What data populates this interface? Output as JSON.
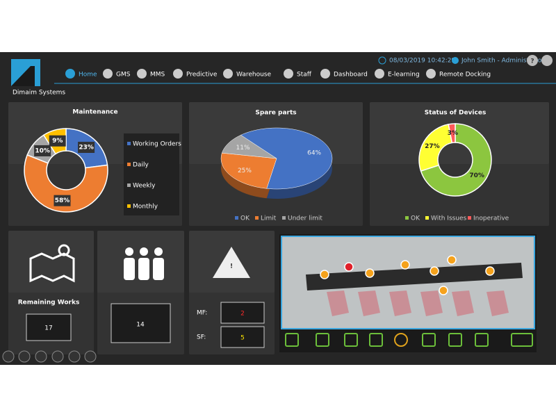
{
  "header": {
    "brand": "Dimaim Systems",
    "datetime": "08/03/2019 10:42:29",
    "user": "John Smith - Administrator"
  },
  "nav": [
    "Home",
    "GMS",
    "MMS",
    "Predictive",
    "Warehouse",
    "Staff",
    "Dashboard",
    "E-learning",
    "Remote Docking"
  ],
  "maintenance": {
    "type": "donut",
    "title": "Maintenance",
    "categories": [
      "Working Orders",
      "Daily",
      "Weekly",
      "Monthly"
    ],
    "values": [
      23,
      58,
      10,
      9
    ],
    "value_labels": [
      "23%",
      "58%",
      "10%",
      "9%"
    ],
    "colors": [
      "#4472c4",
      "#ed7d31",
      "#a5a5a5",
      "#ffc000"
    ]
  },
  "spare_parts": {
    "type": "pie3d",
    "title": "Spare parts",
    "categories": [
      "OK",
      "Limit",
      "Under limit"
    ],
    "values": [
      64,
      25,
      11
    ],
    "value_labels": [
      "64%",
      "25%",
      "11%"
    ],
    "colors": [
      "#4472c4",
      "#ed7d31",
      "#a5a5a5"
    ]
  },
  "devices": {
    "type": "donut",
    "title": "Status of Devices",
    "categories": [
      "OK",
      "With Issues",
      "Inoperative"
    ],
    "values": [
      70,
      27,
      3
    ],
    "value_labels": [
      "70%",
      "27%",
      "3%"
    ],
    "colors": [
      "#8cc63f",
      "#ffff33",
      "#ff5a5a"
    ]
  },
  "remaining_works": {
    "label": "Remaining Works",
    "value": 17
  },
  "staff": {
    "value": 14
  },
  "faults": {
    "mf_label": "MF:",
    "mf": 2,
    "sf_label": "SF:",
    "sf": 5
  }
}
